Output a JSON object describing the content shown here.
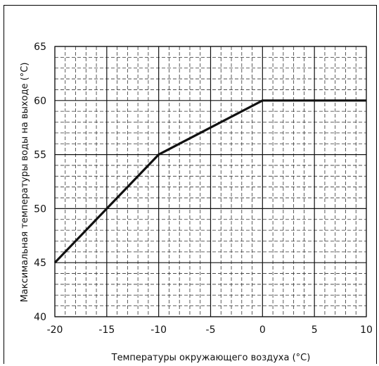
{
  "chart_data": {
    "type": "line",
    "title": "",
    "xlabel": "Температуры окружающего воздуха (°C)",
    "ylabel": "Максимальная температуры воды на выходе (°C)",
    "xlim": [
      -20,
      10
    ],
    "ylim": [
      40,
      65
    ],
    "x_ticks": [
      -20,
      -15,
      -10,
      -5,
      0,
      5,
      10
    ],
    "y_ticks": [
      40,
      45,
      50,
      55,
      60,
      65
    ],
    "x_tick_labels": [
      "-20",
      "-15",
      "-10",
      "-5",
      "0",
      "5",
      "10"
    ],
    "y_tick_labels": [
      "40",
      "45",
      "50",
      "55",
      "60",
      "65"
    ],
    "grid": true,
    "minor_grid": true,
    "series": [
      {
        "x": [
          -20,
          -10,
          0,
          10
        ],
        "y": [
          45,
          55,
          60,
          60
        ]
      }
    ],
    "colors": {
      "line": "#111111",
      "major_grid": "#111111",
      "minor_grid": "#333333"
    }
  }
}
